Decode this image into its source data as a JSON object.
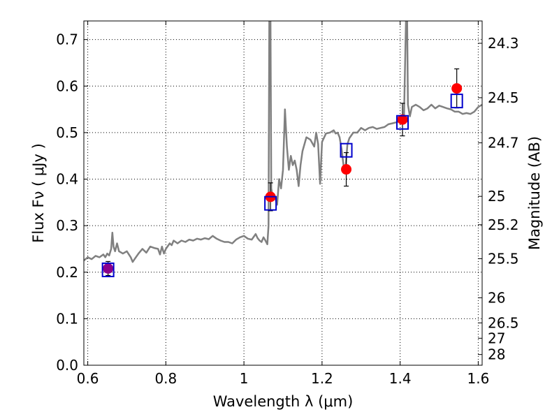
{
  "chart_data": {
    "type": "scatter",
    "title": "",
    "xlabel": "Wavelength  λ (μm)",
    "ylabel": "Flux  Fν ( μJy )",
    "ylabel_right": "Magnitude (AB)",
    "xlim": [
      0.59,
      1.61
    ],
    "ylim": [
      0.0,
      0.74
    ],
    "grid": true,
    "x_ticks": [
      0.6,
      0.8,
      1.0,
      1.2,
      1.4,
      1.6
    ],
    "x_tick_labels": [
      "0.6",
      "0.8",
      "1",
      "1.2",
      "1.4",
      "1.6"
    ],
    "y_ticks": [
      0.0,
      0.1,
      0.2,
      0.3,
      0.4,
      0.5,
      0.6,
      0.7
    ],
    "y_tick_labels": [
      "0.0",
      "0.1",
      "0.2",
      "0.3",
      "0.4",
      "0.5",
      "0.6",
      "0.7"
    ],
    "right_ticks": [
      {
        "label": "24.3",
        "flux": 0.692
      },
      {
        "label": "24.5",
        "flux": 0.575
      },
      {
        "label": "24.7",
        "flux": 0.478
      },
      {
        "label": "25",
        "flux": 0.363
      },
      {
        "label": "25.2",
        "flux": 0.302
      },
      {
        "label": "25.5",
        "flux": 0.229
      },
      {
        "label": "26",
        "flux": 0.145
      },
      {
        "label": "26.5",
        "flux": 0.091
      },
      {
        "label": "27",
        "flux": 0.058
      },
      {
        "label": "28",
        "flux": 0.023
      }
    ],
    "series": [
      {
        "kind": "line",
        "color": "#808080",
        "points": [
          [
            0.59,
            0.225
          ],
          [
            0.6,
            0.232
          ],
          [
            0.61,
            0.228
          ],
          [
            0.62,
            0.235
          ],
          [
            0.63,
            0.232
          ],
          [
            0.64,
            0.238
          ],
          [
            0.645,
            0.232
          ],
          [
            0.65,
            0.24
          ],
          [
            0.655,
            0.236
          ],
          [
            0.66,
            0.25
          ],
          [
            0.663,
            0.285
          ],
          [
            0.666,
            0.255
          ],
          [
            0.67,
            0.245
          ],
          [
            0.675,
            0.262
          ],
          [
            0.68,
            0.245
          ],
          [
            0.69,
            0.24
          ],
          [
            0.7,
            0.245
          ],
          [
            0.71,
            0.232
          ],
          [
            0.715,
            0.222
          ],
          [
            0.72,
            0.228
          ],
          [
            0.73,
            0.24
          ],
          [
            0.74,
            0.25
          ],
          [
            0.75,
            0.242
          ],
          [
            0.76,
            0.255
          ],
          [
            0.77,
            0.252
          ],
          [
            0.78,
            0.25
          ],
          [
            0.785,
            0.238
          ],
          [
            0.79,
            0.255
          ],
          [
            0.795,
            0.24
          ],
          [
            0.8,
            0.25
          ],
          [
            0.81,
            0.262
          ],
          [
            0.815,
            0.258
          ],
          [
            0.82,
            0.268
          ],
          [
            0.83,
            0.262
          ],
          [
            0.84,
            0.268
          ],
          [
            0.85,
            0.265
          ],
          [
            0.86,
            0.27
          ],
          [
            0.87,
            0.268
          ],
          [
            0.88,
            0.272
          ],
          [
            0.89,
            0.27
          ],
          [
            0.9,
            0.273
          ],
          [
            0.91,
            0.271
          ],
          [
            0.92,
            0.278
          ],
          [
            0.93,
            0.272
          ],
          [
            0.94,
            0.268
          ],
          [
            0.95,
            0.265
          ],
          [
            0.96,
            0.265
          ],
          [
            0.97,
            0.262
          ],
          [
            0.98,
            0.27
          ],
          [
            0.99,
            0.275
          ],
          [
            1.0,
            0.278
          ],
          [
            1.01,
            0.272
          ],
          [
            1.02,
            0.27
          ],
          [
            1.03,
            0.282
          ],
          [
            1.035,
            0.273
          ],
          [
            1.04,
            0.268
          ],
          [
            1.045,
            0.265
          ],
          [
            1.05,
            0.275
          ],
          [
            1.055,
            0.268
          ],
          [
            1.06,
            0.26
          ],
          [
            1.063,
            0.3
          ],
          [
            1.065,
            0.74
          ],
          [
            1.068,
            0.74
          ],
          [
            1.07,
            0.38
          ],
          [
            1.075,
            0.355
          ],
          [
            1.08,
            0.36
          ],
          [
            1.085,
            0.345
          ],
          [
            1.09,
            0.4
          ],
          [
            1.095,
            0.38
          ],
          [
            1.1,
            0.42
          ],
          [
            1.105,
            0.55
          ],
          [
            1.11,
            0.47
          ],
          [
            1.115,
            0.42
          ],
          [
            1.12,
            0.45
          ],
          [
            1.125,
            0.43
          ],
          [
            1.13,
            0.44
          ],
          [
            1.135,
            0.42
          ],
          [
            1.14,
            0.385
          ],
          [
            1.145,
            0.43
          ],
          [
            1.15,
            0.46
          ],
          [
            1.16,
            0.49
          ],
          [
            1.17,
            0.485
          ],
          [
            1.18,
            0.47
          ],
          [
            1.185,
            0.5
          ],
          [
            1.19,
            0.475
          ],
          [
            1.195,
            0.39
          ],
          [
            1.2,
            0.48
          ],
          [
            1.21,
            0.498
          ],
          [
            1.22,
            0.5
          ],
          [
            1.23,
            0.505
          ],
          [
            1.235,
            0.498
          ],
          [
            1.24,
            0.5
          ],
          [
            1.245,
            0.49
          ],
          [
            1.25,
            0.465
          ],
          [
            1.255,
            0.43
          ],
          [
            1.26,
            0.42
          ],
          [
            1.265,
            0.475
          ],
          [
            1.27,
            0.488
          ],
          [
            1.28,
            0.5
          ],
          [
            1.29,
            0.5
          ],
          [
            1.3,
            0.51
          ],
          [
            1.31,
            0.505
          ],
          [
            1.32,
            0.51
          ],
          [
            1.33,
            0.512
          ],
          [
            1.34,
            0.508
          ],
          [
            1.35,
            0.51
          ],
          [
            1.36,
            0.512
          ],
          [
            1.37,
            0.518
          ],
          [
            1.38,
            0.52
          ],
          [
            1.39,
            0.522
          ],
          [
            1.4,
            0.525
          ],
          [
            1.405,
            0.53
          ],
          [
            1.41,
            0.535
          ],
          [
            1.415,
            0.74
          ],
          [
            1.418,
            0.74
          ],
          [
            1.42,
            0.56
          ],
          [
            1.425,
            0.535
          ],
          [
            1.43,
            0.555
          ],
          [
            1.44,
            0.56
          ],
          [
            1.45,
            0.555
          ],
          [
            1.46,
            0.548
          ],
          [
            1.47,
            0.552
          ],
          [
            1.48,
            0.56
          ],
          [
            1.49,
            0.552
          ],
          [
            1.5,
            0.558
          ],
          [
            1.51,
            0.555
          ],
          [
            1.52,
            0.552
          ],
          [
            1.53,
            0.55
          ],
          [
            1.54,
            0.545
          ],
          [
            1.55,
            0.545
          ],
          [
            1.56,
            0.54
          ],
          [
            1.57,
            0.542
          ],
          [
            1.58,
            0.54
          ],
          [
            1.59,
            0.545
          ],
          [
            1.6,
            0.555
          ],
          [
            1.61,
            0.56
          ]
        ]
      },
      {
        "kind": "markers",
        "marker": "circle",
        "color": "#ff0000",
        "points": [
          {
            "x": 0.652,
            "y": 0.208,
            "yerr": 0.015,
            "color": "#8b008b"
          },
          {
            "x": 1.068,
            "y": 0.362,
            "yerr": 0.03
          },
          {
            "x": 1.262,
            "y": 0.421,
            "yerr": 0.036
          },
          {
            "x": 1.406,
            "y": 0.528,
            "yerr": 0.035
          },
          {
            "x": 1.545,
            "y": 0.595,
            "yerr": 0.042
          }
        ]
      },
      {
        "kind": "markers",
        "marker": "open-square",
        "color": "#0000cc",
        "points": [
          {
            "x": 0.652,
            "y": 0.205
          },
          {
            "x": 1.068,
            "y": 0.348
          },
          {
            "x": 1.262,
            "y": 0.462
          },
          {
            "x": 1.406,
            "y": 0.522
          },
          {
            "x": 1.545,
            "y": 0.568
          }
        ]
      }
    ]
  }
}
